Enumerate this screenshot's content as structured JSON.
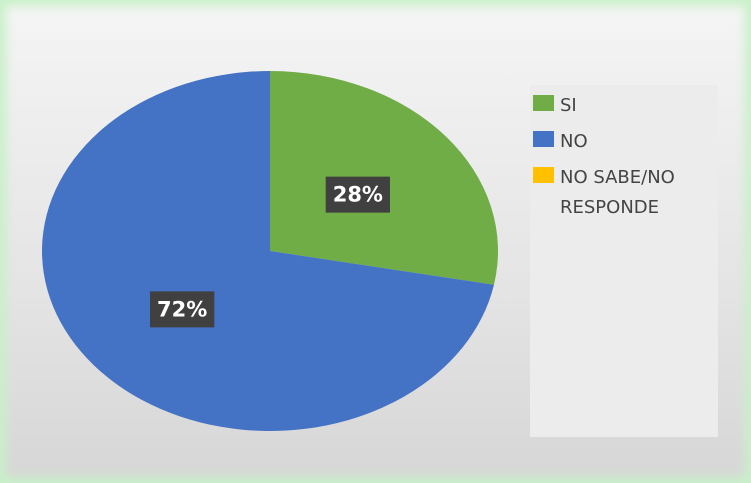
{
  "chart_data": {
    "type": "pie",
    "categories": [
      "SI",
      "NO",
      "NO SABE/NO RESPONDE"
    ],
    "values": [
      28,
      72,
      0
    ],
    "value_labels": [
      "28%",
      "72%",
      null
    ],
    "colors": [
      "#70ad47",
      "#4472c4",
      "#ffc000"
    ],
    "legend": "right"
  }
}
